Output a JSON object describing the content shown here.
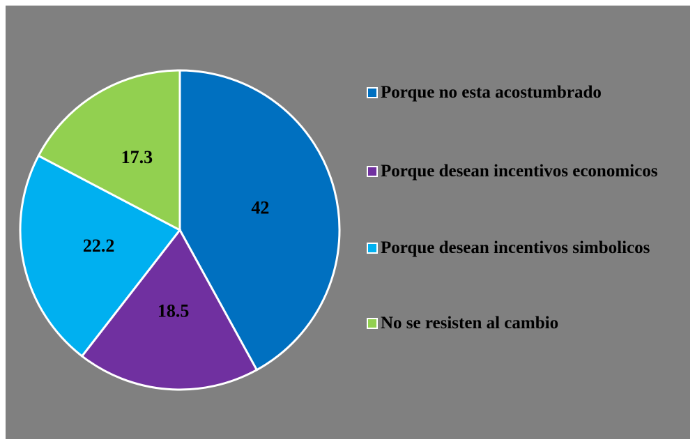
{
  "chart_data": {
    "type": "pie",
    "categories": [
      "Porque no esta acostumbrado",
      "Porque desean incentivos economicos",
      "Porque desean incentivos simbolicos",
      "No se resisten al cambio"
    ],
    "values": [
      42,
      18.5,
      22.2,
      17.3
    ],
    "colors": [
      "#0070c0",
      "#7030a0",
      "#00b0f0",
      "#92d050"
    ],
    "legend": "right"
  }
}
